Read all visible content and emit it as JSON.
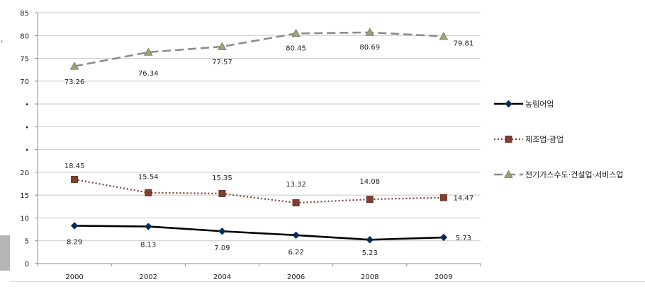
{
  "chart_data": {
    "type": "line",
    "categories": [
      "2000",
      "2002",
      "2004",
      "2006",
      "2008",
      "2009"
    ],
    "y_ticks": [
      "0",
      "5",
      "10",
      "15",
      "20",
      "•",
      "•",
      "•",
      "70",
      "75",
      "80",
      "85"
    ],
    "series": [
      {
        "name": "농림어업",
        "values": [
          8.29,
          8.13,
          7.09,
          6.22,
          5.23,
          5.73
        ],
        "labels": [
          "8.29",
          "8.13",
          "7.09",
          "6.22",
          "5.23",
          "5.73"
        ],
        "color": "#000000",
        "marker": "diamond",
        "dash": "solid"
      },
      {
        "name": "제조업·광업",
        "values": [
          18.45,
          15.54,
          15.35,
          13.32,
          14.08,
          14.47
        ],
        "labels": [
          "18.45",
          "15.54",
          "15.35",
          "13.32",
          "14.08",
          "14.47"
        ],
        "color": "#7f3f2f",
        "marker": "square",
        "dash": "dotted"
      },
      {
        "name": "전기가스수도·건설업·서비스업",
        "values": [
          73.26,
          76.34,
          77.57,
          80.45,
          80.69,
          79.81
        ],
        "labels": [
          "73.26",
          "76.34",
          "77.57",
          "80.45",
          "80.69",
          "79.81"
        ],
        "color": "#8c8c8c",
        "marker": "triangle",
        "dash": "dashed"
      }
    ],
    "axis": {
      "scale": "broken",
      "lower_range": [
        0,
        20
      ],
      "upper_range": [
        70,
        85
      ]
    },
    "grid": true,
    "legend_position": "right"
  }
}
